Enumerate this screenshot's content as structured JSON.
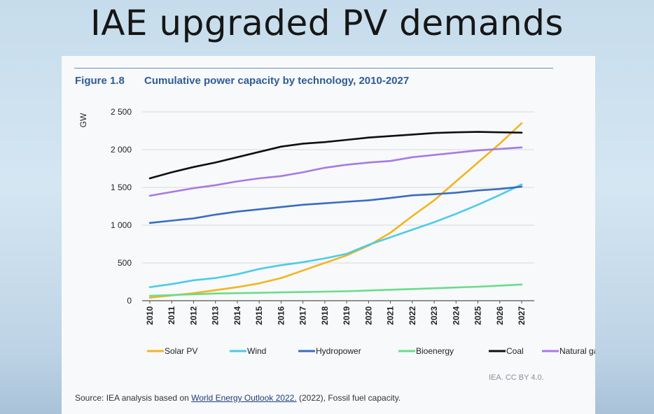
{
  "slide": {
    "title": "IAE upgraded PV demands"
  },
  "figure": {
    "label": "Figure 1.8",
    "title": "Cumulative power capacity by technology, 2010-2027"
  },
  "chart_data": {
    "type": "line",
    "title": "Cumulative power capacity by technology, 2010-2027",
    "xlabel": "",
    "ylabel": "GW",
    "ylim": [
      0,
      2500
    ],
    "yticks": [
      0,
      500,
      1000,
      1500,
      2000,
      2500
    ],
    "ytick_labels": [
      "0",
      "500",
      "1 000",
      "1 500",
      "2 000",
      "2 500"
    ],
    "grid": true,
    "legend_position": "bottom",
    "x": [
      "2010",
      "2011",
      "2012",
      "2013",
      "2014",
      "2015",
      "2016",
      "2017",
      "2018",
      "2019",
      "2020",
      "2021",
      "2022",
      "2023",
      "2024",
      "2025",
      "2026",
      "2027"
    ],
    "series": [
      {
        "name": "Solar PV",
        "color": "#f2b51d",
        "values": [
          40,
          70,
          100,
          140,
          180,
          230,
          300,
          400,
          500,
          600,
          730,
          900,
          1120,
          1330,
          1580,
          1830,
          2080,
          2350
        ]
      },
      {
        "name": "Wind",
        "color": "#4ccbe8",
        "values": [
          180,
          220,
          270,
          300,
          350,
          420,
          470,
          510,
          560,
          620,
          740,
          840,
          940,
          1040,
          1150,
          1270,
          1400,
          1540
        ]
      },
      {
        "name": "Hydropower",
        "color": "#3b6cc1",
        "values": [
          1030,
          1060,
          1090,
          1140,
          1180,
          1210,
          1240,
          1270,
          1290,
          1310,
          1330,
          1360,
          1395,
          1410,
          1430,
          1460,
          1480,
          1510
        ]
      },
      {
        "name": "Bioenergy",
        "color": "#6bdc8b",
        "values": [
          65,
          75,
          85,
          95,
          100,
          105,
          110,
          115,
          120,
          125,
          135,
          145,
          155,
          165,
          175,
          185,
          200,
          215
        ]
      },
      {
        "name": "Coal",
        "color": "#0f0f0f",
        "values": [
          1620,
          1700,
          1770,
          1830,
          1900,
          1970,
          2040,
          2080,
          2100,
          2130,
          2160,
          2180,
          2200,
          2220,
          2230,
          2235,
          2230,
          2225
        ]
      },
      {
        "name": "Natural gas",
        "color": "#a77ae3",
        "values": [
          1390,
          1440,
          1490,
          1530,
          1580,
          1620,
          1650,
          1700,
          1760,
          1800,
          1830,
          1850,
          1900,
          1930,
          1960,
          1990,
          2010,
          2030
        ]
      }
    ]
  },
  "credit": "IEA. CC BY 4.0.",
  "source": {
    "prefix": "Source: IEA analysis based on ",
    "link": "World Energy Outlook 2022.",
    "suffix": " (2022), Fossil fuel capacity."
  }
}
